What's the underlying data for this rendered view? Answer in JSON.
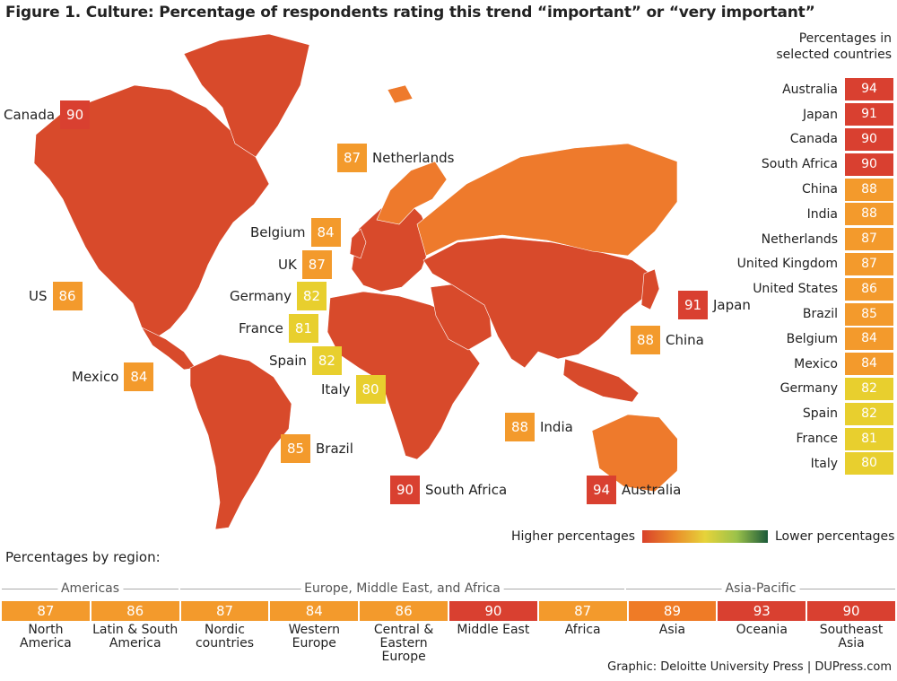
{
  "title": "Figure 1. Culture: Percentage of respondents rating this trend “important” or “very important”",
  "colors": {
    "map_land": "#d84a2b",
    "map_land_light": "#ee7a2c",
    "v94": "#d94030",
    "v93": "#d94030",
    "v91": "#d94030",
    "v90": "#d94030",
    "v89": "#ef7b26",
    "v88": "#f39a2c",
    "v87": "#f39a2c",
    "v86": "#f39a2c",
    "v85": "#f39a2c",
    "v84": "#f39a2c",
    "v82": "#e8cf2e",
    "v81": "#e8cf2e",
    "v80": "#e8cf2e"
  },
  "map_labels": [
    {
      "name": "Canada",
      "value": 90
    },
    {
      "name": "Netherlands",
      "value": 87
    },
    {
      "name": "Belgium",
      "value": 84
    },
    {
      "name": "UK",
      "value": 87
    },
    {
      "name": "Germany",
      "value": 82
    },
    {
      "name": "US",
      "value": 86
    },
    {
      "name": "France",
      "value": 81
    },
    {
      "name": "Spain",
      "value": 82
    },
    {
      "name": "Italy",
      "value": 80
    },
    {
      "name": "Mexico",
      "value": 84
    },
    {
      "name": "Brazil",
      "value": 85
    },
    {
      "name": "South Africa",
      "value": 90
    },
    {
      "name": "India",
      "value": 88
    },
    {
      "name": "China",
      "value": 88
    },
    {
      "name": "Japan",
      "value": 91
    },
    {
      "name": "Australia",
      "value": 94
    }
  ],
  "selected_header": [
    "Percentages in",
    "selected countries"
  ],
  "legend": {
    "high": "Higher percentages",
    "low": "Lower percentages"
  },
  "region_title": "Percentages by region:",
  "region_groups": [
    {
      "label": "Americas"
    },
    {
      "label": "Europe, Middle East, and Africa"
    },
    {
      "label": "Asia-Pacific"
    }
  ],
  "credit": "Graphic: Deloitte University Press | DUPress.com",
  "chart_data": [
    {
      "type": "table",
      "title": "Percentages in selected countries",
      "categories": [
        "Australia",
        "Japan",
        "Canada",
        "South Africa",
        "China",
        "India",
        "Netherlands",
        "United Kingdom",
        "United States",
        "Brazil",
        "Belgium",
        "Mexico",
        "Germany",
        "Spain",
        "France",
        "Italy"
      ],
      "values": [
        94,
        91,
        90,
        90,
        88,
        88,
        87,
        87,
        86,
        85,
        84,
        84,
        82,
        82,
        81,
        80
      ]
    },
    {
      "type": "table",
      "title": "Percentages by region:",
      "categories": [
        "North America",
        "Latin & South America",
        "Nordic countries",
        "Western Europe",
        "Central & Eastern Europe",
        "Middle East",
        "Africa",
        "Asia",
        "Oceania",
        "Southeast Asia"
      ],
      "values": [
        87,
        86,
        87,
        84,
        86,
        90,
        87,
        89,
        93,
        90
      ]
    }
  ]
}
